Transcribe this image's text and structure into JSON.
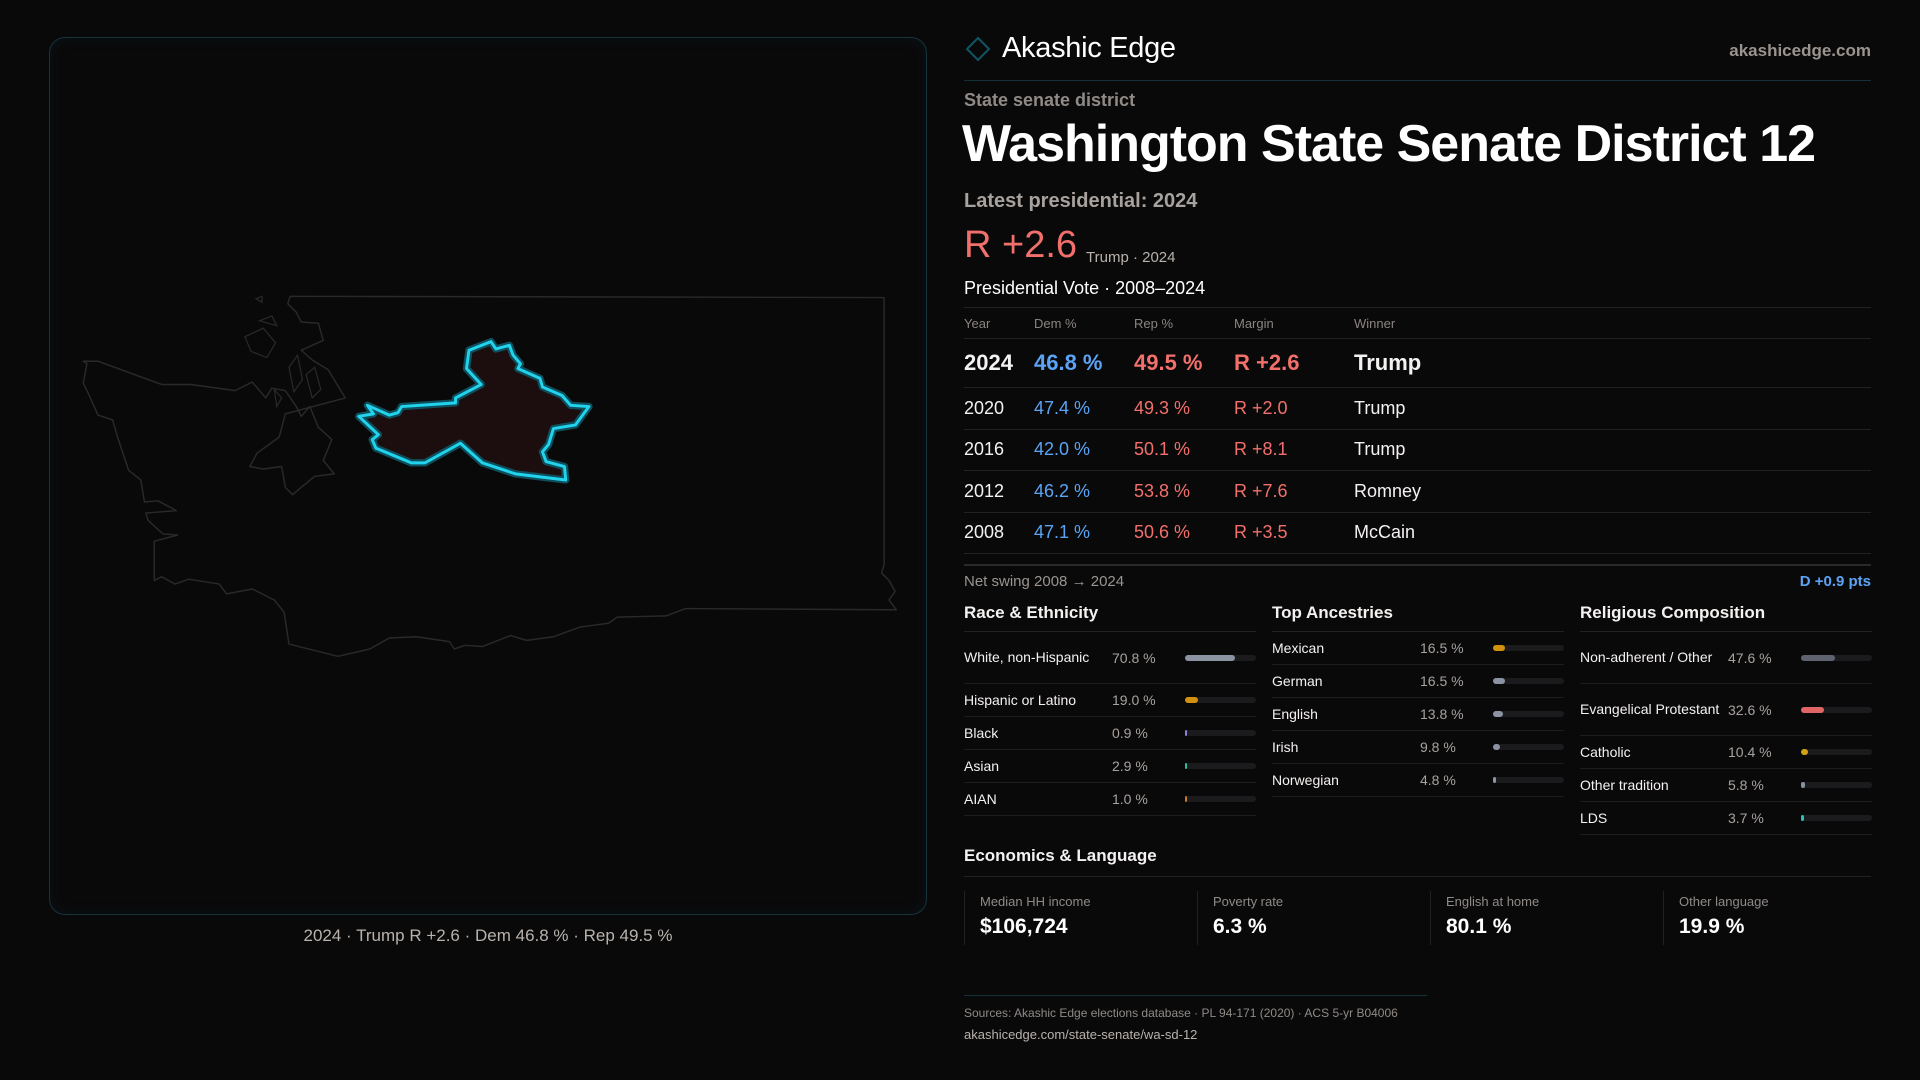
{
  "brand": {
    "name": "Akashic Edge",
    "site": "akashicedge.com"
  },
  "map": {
    "caption": "2024 · Trump R +2.6 · Dem 46.8 % · Rep 49.5 %",
    "highlight_color": "#22d3ee"
  },
  "header": {
    "kicker": "State senate district",
    "title": "Washington State Senate District 12",
    "latest": "Latest presidential: 2024",
    "margin": "R +2.6",
    "margin_sub": "Trump · 2024"
  },
  "vote": {
    "title": "Presidential Vote · 2008–2024",
    "columns": [
      "Year",
      "Dem %",
      "Rep %",
      "Margin",
      "Winner"
    ],
    "rows": [
      {
        "year": "2024",
        "dem": "46.8 %",
        "rep": "49.5 %",
        "margin": "R +2.6",
        "winner": "Trump"
      },
      {
        "year": "2020",
        "dem": "47.4 %",
        "rep": "49.3 %",
        "margin": "R +2.0",
        "winner": "Trump"
      },
      {
        "year": "2016",
        "dem": "42.0 %",
        "rep": "50.1 %",
        "margin": "R +8.1",
        "winner": "Trump"
      },
      {
        "year": "2012",
        "dem": "46.2 %",
        "rep": "53.8 %",
        "margin": "R +7.6",
        "winner": "Romney"
      },
      {
        "year": "2008",
        "dem": "47.1 %",
        "rep": "50.6 %",
        "margin": "R +3.5",
        "winner": "McCain"
      }
    ],
    "net_swing_label": "Net swing 2008 → 2024",
    "net_swing_value": "D +0.9 pts"
  },
  "demographics": [
    {
      "title": "Race & Ethnicity",
      "items": [
        {
          "label": "White, non-Hispanic",
          "pct": "70.8 %",
          "value": 70.8,
          "color": "#8b93a3"
        },
        {
          "label": "Hispanic or Latino",
          "pct": "19.0 %",
          "value": 19.0,
          "color": "#d4900f"
        },
        {
          "label": "Black",
          "pct": "0.9 %",
          "value": 0.9,
          "color": "#8b7fd6"
        },
        {
          "label": "Asian",
          "pct": "2.9 %",
          "value": 2.9,
          "color": "#2bbf9e"
        },
        {
          "label": "AIAN",
          "pct": "1.0 %",
          "value": 1.0,
          "color": "#c77a2a"
        }
      ]
    },
    {
      "title": "Top Ancestries",
      "items": [
        {
          "label": "Mexican",
          "pct": "16.5 %",
          "value": 16.5,
          "color": "#d4900f"
        },
        {
          "label": "German",
          "pct": "16.5 %",
          "value": 16.5,
          "color": "#8b93a3"
        },
        {
          "label": "English",
          "pct": "13.8 %",
          "value": 13.8,
          "color": "#8b93a3"
        },
        {
          "label": "Irish",
          "pct": "9.8 %",
          "value": 9.8,
          "color": "#8b93a3"
        },
        {
          "label": "Norwegian",
          "pct": "4.8 %",
          "value": 4.8,
          "color": "#8b93a3"
        }
      ]
    },
    {
      "title": "Religious Composition",
      "items": [
        {
          "label": "Non-adherent / Other",
          "pct": "47.6 %",
          "value": 47.6,
          "color": "#5f6370"
        },
        {
          "label": "Evangelical Protestant",
          "pct": "32.6 %",
          "value": 32.6,
          "color": "#e06666"
        },
        {
          "label": "Catholic",
          "pct": "10.4 %",
          "value": 10.4,
          "color": "#d4a017"
        },
        {
          "label": "Other tradition",
          "pct": "5.8 %",
          "value": 5.8,
          "color": "#8891a0"
        },
        {
          "label": "LDS",
          "pct": "3.7 %",
          "value": 3.7,
          "color": "#2bbfbf"
        }
      ]
    }
  ],
  "economics": {
    "title": "Economics & Language",
    "stats": [
      {
        "label": "Median HH income",
        "value": "$106,724"
      },
      {
        "label": "Poverty rate",
        "value": "6.3 %"
      },
      {
        "label": "English at home",
        "value": "80.1 %"
      },
      {
        "label": "Other language",
        "value": "19.9 %"
      }
    ]
  },
  "footer": {
    "sources": "Sources: Akashic Edge elections database · PL 94-171 (2020) · ACS 5-yr B04006",
    "url": "akashicedge.com/state-senate/wa-sd-12"
  }
}
